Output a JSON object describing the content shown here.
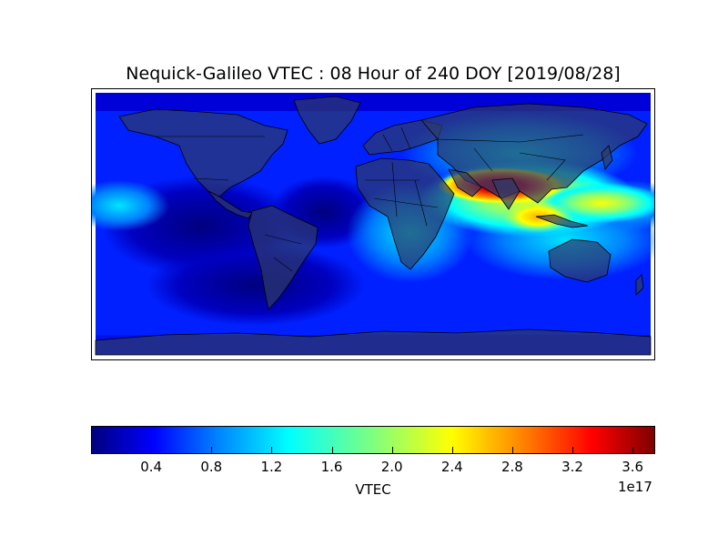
{
  "title": "Nequick-Galileo VTEC : 08 Hour of 240 DOY [2019/08/28]",
  "colorbar": {
    "label": "VTEC",
    "exponent_label": "1e17",
    "min": 0.0,
    "max": 3.75,
    "colormap": "jet",
    "ticks": [
      "0.4",
      "0.8",
      "1.2",
      "1.6",
      "2.0",
      "2.4",
      "2.8",
      "3.2",
      "3.6"
    ]
  },
  "map": {
    "projection": "cylindrical",
    "lon_range": [
      -180,
      180
    ],
    "lat_range": [
      -90,
      90
    ],
    "land_color": "#2e3a6a",
    "features": [
      "coastlines",
      "country-borders"
    ]
  }
}
